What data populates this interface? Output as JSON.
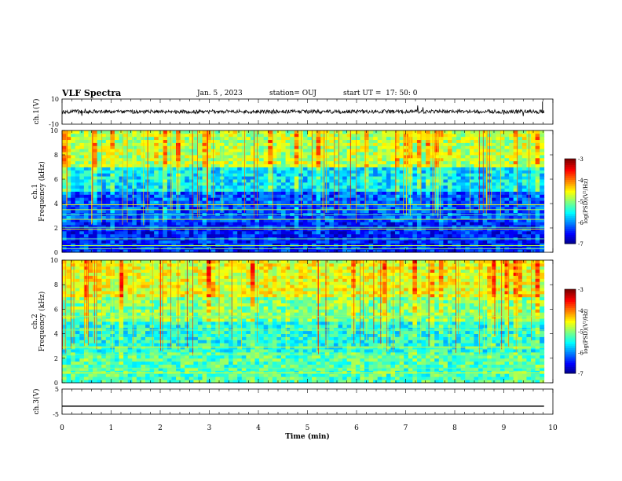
{
  "header": {
    "title": "VLF Spectra",
    "date": "Jan. 5 , 2023",
    "station": "station= OUJ",
    "start": "start UT =  17: 50: 0"
  },
  "chart_data": [
    {
      "type": "line",
      "name": "ch1-waveform",
      "ylabel": "ch.1(V)",
      "ylim": [
        -10,
        10
      ],
      "yticklabels": [
        "10",
        "-10"
      ],
      "xlim": [
        0,
        10
      ],
      "x_extent": [
        0,
        9.82
      ],
      "baseline": 0,
      "amplitude_typical": 1.5
    },
    {
      "type": "heatmap",
      "name": "ch1-spectrogram",
      "channel_label": "ch.1",
      "ylabel": "Frequency (kHz)",
      "ylim": [
        0,
        10
      ],
      "yticks": [
        0,
        2,
        4,
        6,
        8,
        10
      ],
      "xlim": [
        0,
        10
      ],
      "x_extent": [
        0,
        9.82
      ],
      "colorbar": {
        "label": "log(PSD)(V²/Hz)",
        "ticks": [
          -3,
          -4,
          -5,
          -6,
          -7
        ],
        "range": [
          -7,
          -3
        ]
      },
      "bands_logpsd": [
        {
          "f": [
            0,
            2.5
          ],
          "level": -6.4
        },
        {
          "f": [
            2.5,
            5
          ],
          "level": -6.2
        },
        {
          "f": [
            5,
            7
          ],
          "level": -5.6
        },
        {
          "f": [
            7,
            10
          ],
          "level": -4.8
        }
      ],
      "lines_khz": [
        0.3,
        0.55,
        1.1,
        1.9,
        2.05,
        2.7,
        3.1,
        3.5,
        3.9
      ]
    },
    {
      "type": "heatmap",
      "name": "ch2-spectrogram",
      "channel_label": "ch.2",
      "ylabel": "Frequency (kHz)",
      "ylim": [
        0,
        10
      ],
      "yticks": [
        0,
        2,
        4,
        6,
        8,
        10
      ],
      "xlim": [
        0,
        10
      ],
      "x_extent": [
        0,
        9.82
      ],
      "colorbar": {
        "label": "log(PSD)(V²/Hz)",
        "ticks": [
          -3,
          -4,
          -5,
          -6,
          -7
        ],
        "range": [
          -7,
          -3
        ]
      },
      "bands_logpsd": [
        {
          "f": [
            0,
            2.5
          ],
          "level": -5.2
        },
        {
          "f": [
            2.5,
            5
          ],
          "level": -5.4
        },
        {
          "f": [
            5,
            7
          ],
          "level": -5.0
        },
        {
          "f": [
            7,
            10
          ],
          "level": -4.6
        }
      ],
      "lines_khz": [
        0.8,
        1.2,
        2.3,
        2.9,
        4.3,
        5.4
      ]
    },
    {
      "type": "line",
      "name": "ch3-waveform",
      "ylabel": "ch.3(V)",
      "ylim": [
        -5,
        5
      ],
      "yticklabels": [
        "5",
        "-5"
      ],
      "xlim": [
        0,
        10
      ],
      "x_extent": [
        0,
        9.82
      ],
      "baseline": -1.8
    }
  ],
  "x_axis": {
    "label": "Time (min)",
    "ticks": [
      "0",
      "1",
      "2",
      "3",
      "4",
      "5",
      "6",
      "7",
      "8",
      "9",
      "10"
    ]
  }
}
